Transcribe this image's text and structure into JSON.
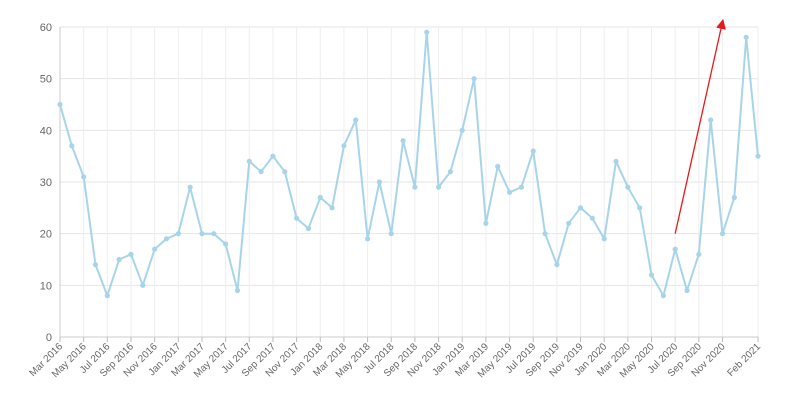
{
  "chart_data": {
    "type": "line",
    "title": "",
    "xlabel": "",
    "ylabel": "",
    "ylim": [
      0,
      60
    ],
    "yticks": [
      0,
      10,
      20,
      30,
      40,
      50,
      60
    ],
    "grid": true,
    "legend": "none",
    "x": [
      "Mar 2016",
      "Apr 2016",
      "May 2016",
      "Jun 2016",
      "Jul 2016",
      "Aug 2016",
      "Sep 2016",
      "Oct 2016",
      "Nov 2016",
      "Dec 2016",
      "Jan 2017",
      "Feb 2017",
      "Mar 2017",
      "Apr 2017",
      "May 2017",
      "Jun 2017",
      "Jul 2017",
      "Aug 2017",
      "Sep 2017",
      "Oct 2017",
      "Nov 2017",
      "Dec 2017",
      "Jan 2018",
      "Feb 2018",
      "Mar 2018",
      "Apr 2018",
      "May 2018",
      "Jun 2018",
      "Jul 2018",
      "Aug 2018",
      "Sep 2018",
      "Oct 2018",
      "Nov 2018",
      "Dec 2018",
      "Jan 2019",
      "Feb 2019",
      "Mar 2019",
      "Apr 2019",
      "May 2019",
      "Jun 2019",
      "Jul 2019",
      "Aug 2019",
      "Sep 2019",
      "Oct 2019",
      "Nov 2019",
      "Dec 2019",
      "Jan 2020",
      "Feb 2020",
      "Mar 2020",
      "Apr 2020",
      "May 2020",
      "Jun 2020",
      "Jul 2020",
      "Aug 2020",
      "Sep 2020",
      "Oct 2020",
      "Nov 2020",
      "Dec 2020",
      "Jan 2021",
      "Feb 2021"
    ],
    "xtick_labels": [
      "Mar 2016",
      "May 2016",
      "Jul 2016",
      "Sep 2016",
      "Nov 2016",
      "Jan 2017",
      "Mar 2017",
      "May 2017",
      "Jul 2017",
      "Sep 2017",
      "Nov 2017",
      "Jan 2018",
      "Mar 2018",
      "May 2018",
      "Jul 2018",
      "Sep 2018",
      "Nov 2018",
      "Jan 2019",
      "Mar 2019",
      "May 2019",
      "Jul 2019",
      "Sep 2019",
      "Nov 2019",
      "Jan 2020",
      "Mar 2020",
      "May 2020",
      "Jul 2020",
      "Sep 2020",
      "Nov 2020",
      "Feb 2021"
    ],
    "series": [
      {
        "values": [
          45,
          37,
          31,
          14,
          8,
          15,
          16,
          10,
          17,
          19,
          20,
          29,
          20,
          20,
          18,
          9,
          34,
          32,
          35,
          32,
          23,
          21,
          27,
          25,
          37,
          42,
          19,
          30,
          20,
          38,
          29,
          59,
          29,
          32,
          40,
          50,
          22,
          33,
          28,
          29,
          36,
          20,
          14,
          22,
          25,
          23,
          19,
          34,
          29,
          25,
          12,
          8,
          17,
          9,
          16,
          42,
          20,
          27,
          58,
          35
        ],
        "color": "#a8d4ea"
      }
    ],
    "annotations": [
      {
        "type": "arrow",
        "color": "#e41a1c",
        "from": [
          "Jul 2020",
          20
        ],
        "to": [
          "Nov 2020",
          61
        ]
      }
    ]
  }
}
